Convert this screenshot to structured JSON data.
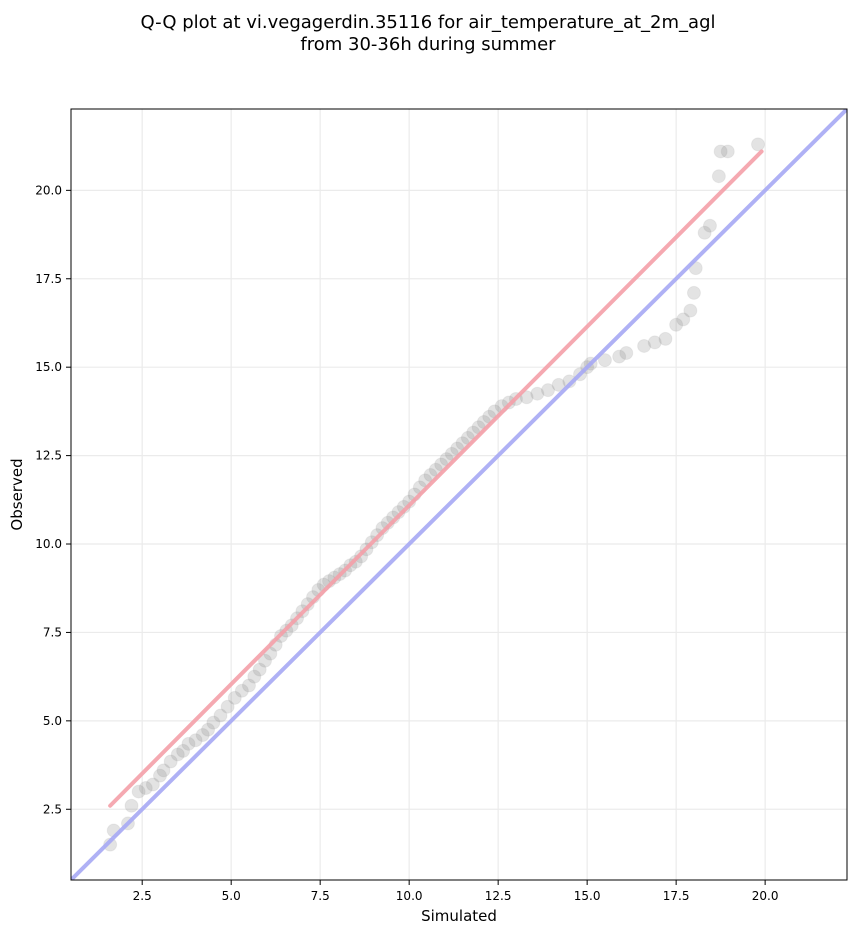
{
  "chart_data": {
    "type": "scatter",
    "title": "Q-Q plot at vi.vegagerdin.35116 for air_temperature_at_2m_agl",
    "subtitle": "from 30-36h during summer",
    "xlabel": "Simulated",
    "ylabel": "Observed",
    "xlim": [
      0.5,
      22.3
    ],
    "ylim": [
      0.5,
      22.3
    ],
    "xticks": [
      "2.5",
      "5.0",
      "7.5",
      "10.0",
      "12.5",
      "15.0",
      "17.5",
      "20.0"
    ],
    "yticks": [
      "2.5",
      "5.0",
      "7.5",
      "10.0",
      "12.5",
      "15.0",
      "17.5",
      "20.0"
    ],
    "grid": true,
    "colors": {
      "points": "#808080",
      "fit_line": "#f4a0a8",
      "identity_line": "#a6a9f4",
      "grid": "#ebebeb"
    },
    "fit_line": {
      "x": [
        1.6,
        19.9
      ],
      "y": [
        2.6,
        21.1
      ]
    },
    "identity_line": {
      "x": [
        0.5,
        22.3
      ],
      "y": [
        0.5,
        22.3
      ]
    },
    "points": [
      [
        1.6,
        1.5
      ],
      [
        1.7,
        1.9
      ],
      [
        2.1,
        2.1
      ],
      [
        2.2,
        2.6
      ],
      [
        2.4,
        3.0
      ],
      [
        2.6,
        3.1
      ],
      [
        2.8,
        3.2
      ],
      [
        3.0,
        3.45
      ],
      [
        3.1,
        3.6
      ],
      [
        3.3,
        3.85
      ],
      [
        3.5,
        4.05
      ],
      [
        3.65,
        4.15
      ],
      [
        3.8,
        4.35
      ],
      [
        4.0,
        4.45
      ],
      [
        4.2,
        4.6
      ],
      [
        4.35,
        4.75
      ],
      [
        4.5,
        4.95
      ],
      [
        4.7,
        5.15
      ],
      [
        4.9,
        5.4
      ],
      [
        5.1,
        5.65
      ],
      [
        5.3,
        5.85
      ],
      [
        5.5,
        6.0
      ],
      [
        5.65,
        6.25
      ],
      [
        5.8,
        6.45
      ],
      [
        5.95,
        6.7
      ],
      [
        6.1,
        6.9
      ],
      [
        6.25,
        7.15
      ],
      [
        6.4,
        7.4
      ],
      [
        6.55,
        7.55
      ],
      [
        6.7,
        7.7
      ],
      [
        6.85,
        7.9
      ],
      [
        7.0,
        8.1
      ],
      [
        7.15,
        8.3
      ],
      [
        7.3,
        8.5
      ],
      [
        7.45,
        8.7
      ],
      [
        7.6,
        8.85
      ],
      [
        7.75,
        8.95
      ],
      [
        7.9,
        9.05
      ],
      [
        8.05,
        9.15
      ],
      [
        8.2,
        9.25
      ],
      [
        8.35,
        9.4
      ],
      [
        8.5,
        9.5
      ],
      [
        8.65,
        9.65
      ],
      [
        8.8,
        9.85
      ],
      [
        8.95,
        10.05
      ],
      [
        9.1,
        10.25
      ],
      [
        9.25,
        10.45
      ],
      [
        9.4,
        10.6
      ],
      [
        9.55,
        10.75
      ],
      [
        9.7,
        10.9
      ],
      [
        9.85,
        11.05
      ],
      [
        10.0,
        11.2
      ],
      [
        10.15,
        11.4
      ],
      [
        10.3,
        11.6
      ],
      [
        10.45,
        11.8
      ],
      [
        10.6,
        11.95
      ],
      [
        10.75,
        12.1
      ],
      [
        10.9,
        12.25
      ],
      [
        11.05,
        12.4
      ],
      [
        11.2,
        12.55
      ],
      [
        11.35,
        12.7
      ],
      [
        11.5,
        12.85
      ],
      [
        11.65,
        13.0
      ],
      [
        11.8,
        13.15
      ],
      [
        11.95,
        13.3
      ],
      [
        12.1,
        13.45
      ],
      [
        12.25,
        13.6
      ],
      [
        12.4,
        13.75
      ],
      [
        12.6,
        13.9
      ],
      [
        12.8,
        14.0
      ],
      [
        13.0,
        14.1
      ],
      [
        13.3,
        14.15
      ],
      [
        13.6,
        14.25
      ],
      [
        13.9,
        14.35
      ],
      [
        14.2,
        14.5
      ],
      [
        14.5,
        14.6
      ],
      [
        14.8,
        14.8
      ],
      [
        15.0,
        15.0
      ],
      [
        15.1,
        15.1
      ],
      [
        15.5,
        15.2
      ],
      [
        15.9,
        15.3
      ],
      [
        16.1,
        15.4
      ],
      [
        16.6,
        15.6
      ],
      [
        16.9,
        15.7
      ],
      [
        17.2,
        15.8
      ],
      [
        17.5,
        16.2
      ],
      [
        17.7,
        16.35
      ],
      [
        17.9,
        16.6
      ],
      [
        18.0,
        17.1
      ],
      [
        18.05,
        17.8
      ],
      [
        18.3,
        18.8
      ],
      [
        18.45,
        19.0
      ],
      [
        18.7,
        20.4
      ],
      [
        18.75,
        21.1
      ],
      [
        18.95,
        21.1
      ],
      [
        19.8,
        21.3
      ]
    ]
  }
}
